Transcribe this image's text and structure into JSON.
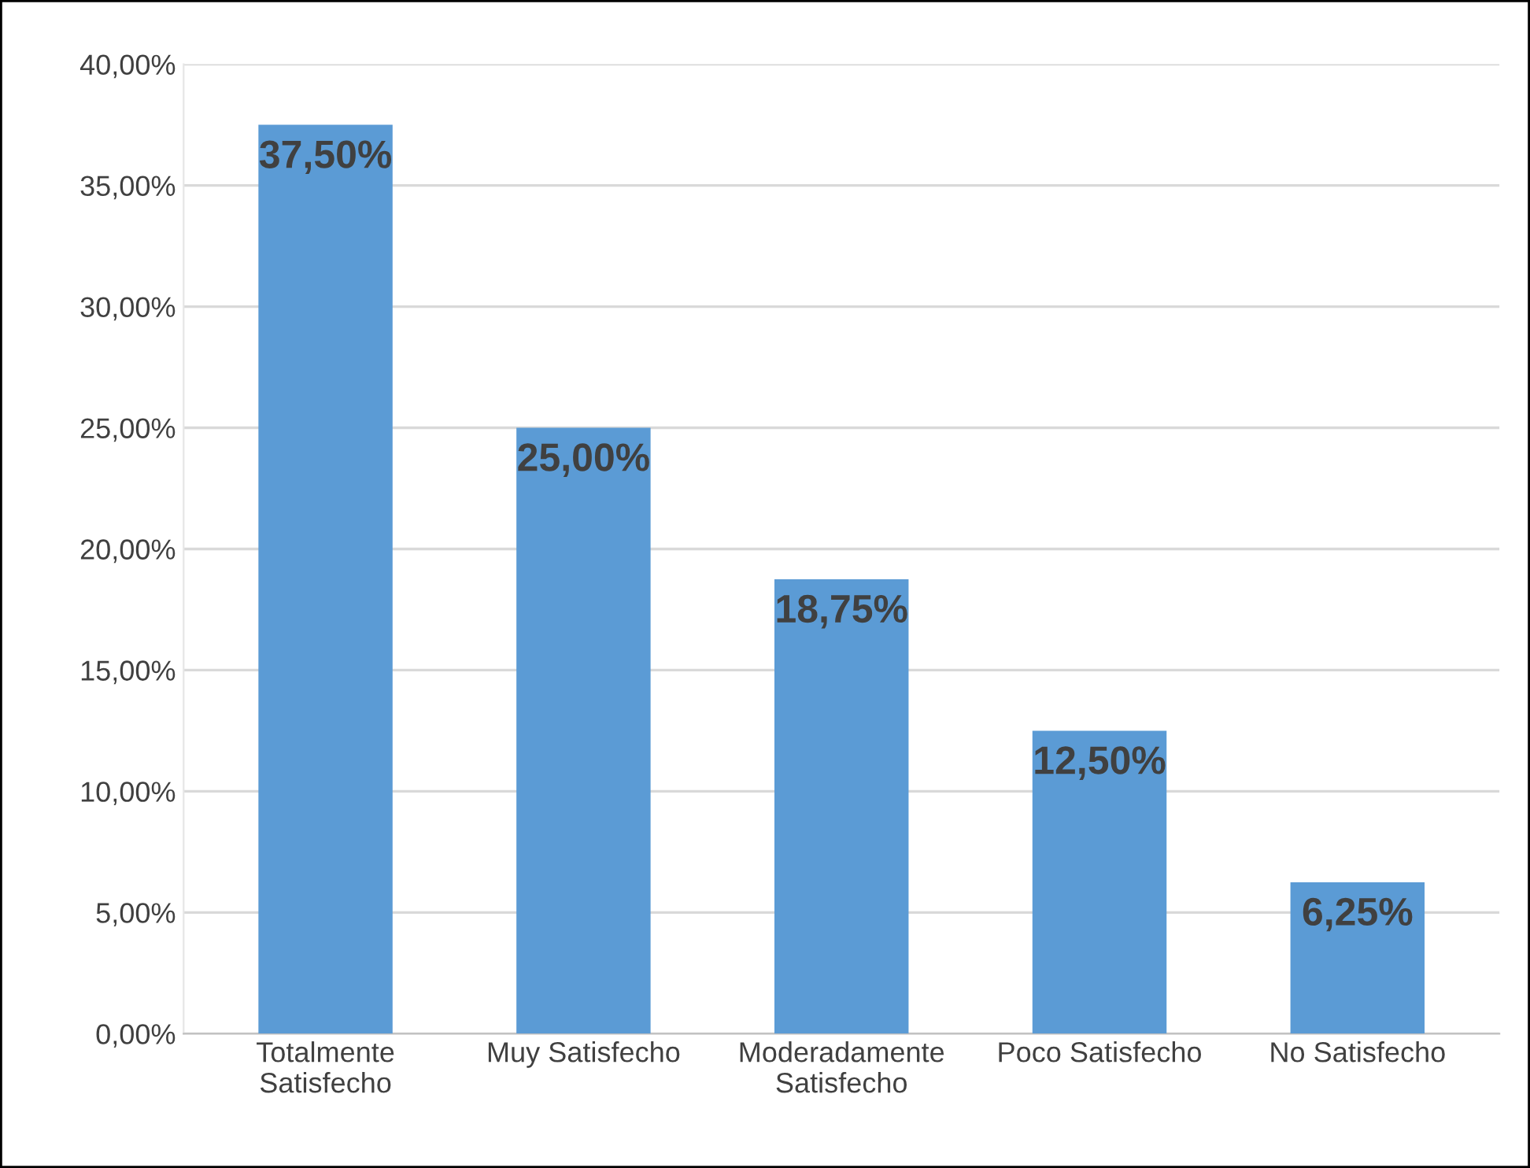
{
  "chart_data": {
    "type": "bar",
    "categories": [
      "Totalmente\nSatisfecho",
      "Muy Satisfecho",
      "Moderadamente\nSatisfecho",
      "Poco Satisfecho",
      "No Satisfecho"
    ],
    "values": [
      37.5,
      25,
      18.75,
      12.5,
      6.25
    ],
    "value_labels": [
      "37,50%",
      "25,00%",
      "18,75%",
      "12,50%",
      "6,25%"
    ],
    "color": "#5b9bd5",
    "ylim": [
      0,
      40
    ],
    "yticks": [
      {
        "value": 0,
        "label": "0,00%"
      },
      {
        "value": 5,
        "label": "5,00%"
      },
      {
        "value": 10,
        "label": "10,00%"
      },
      {
        "value": 15,
        "label": "15,00%"
      },
      {
        "value": 20,
        "label": "20,00%"
      },
      {
        "value": 25,
        "label": "25,00%"
      },
      {
        "value": 30,
        "label": "30,00%"
      },
      {
        "value": 35,
        "label": "35,00%"
      },
      {
        "value": 40,
        "label": "40,00%"
      }
    ],
    "grid": "y"
  }
}
